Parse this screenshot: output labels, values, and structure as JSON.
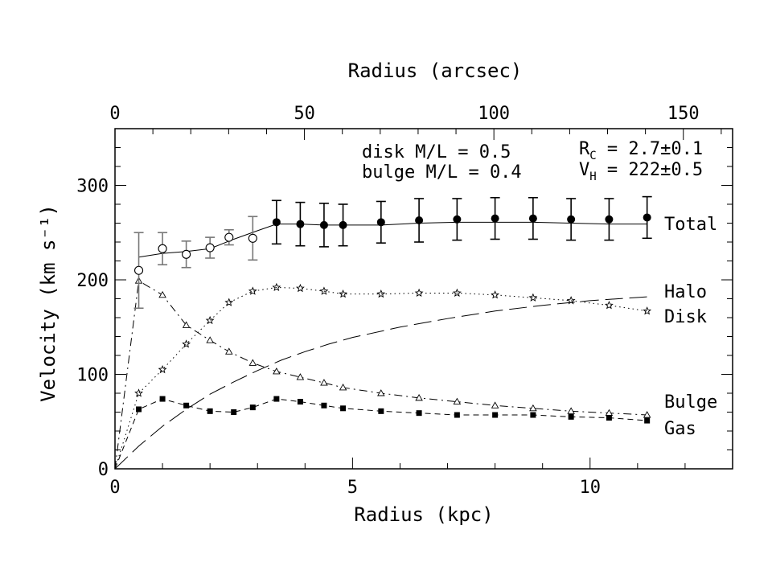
{
  "chart_data": {
    "type": "line",
    "xlabel": "Radius (kpc)",
    "ylabel": "Velocity (km s⁻¹)",
    "x2label": "Radius (arcsec)",
    "xlim": [
      0,
      13
    ],
    "ylim": [
      0,
      360
    ],
    "x2lim": [
      0,
      163
    ],
    "xticks": [
      0,
      5,
      10
    ],
    "yticks": [
      0,
      100,
      200,
      300
    ],
    "x2ticks": [
      0,
      50,
      100,
      150
    ],
    "annotations": {
      "disk_ml": "disk M/L = 0.5",
      "bulge_ml": "bulge M/L = 0.4",
      "rc_label": "R",
      "rc_sub": "C",
      "rc_value": " = 2.7±0.1",
      "vh_label": "V",
      "vh_sub": "H",
      "vh_value": " = 222±0.5"
    },
    "series": [
      {
        "name": "Total",
        "style": "solid",
        "x": [
          0.5,
          1.0,
          1.5,
          2.0,
          2.5,
          3.0,
          3.4,
          3.9,
          4.4,
          4.8,
          5.6,
          6.4,
          7.2,
          8.0,
          8.8,
          9.6,
          10.4,
          11.2
        ],
        "y": [
          224,
          228,
          230,
          233,
          243,
          252,
          259,
          259,
          258,
          258,
          258,
          260,
          261,
          261,
          261,
          260,
          259,
          259
        ]
      },
      {
        "name": "Halo",
        "style": "longdash",
        "x": [
          0,
          0.5,
          1.0,
          1.5,
          2.0,
          2.5,
          3.0,
          3.5,
          4.0,
          4.5,
          5.0,
          6.0,
          7.0,
          8.0,
          9.0,
          10.0,
          11.2
        ],
        "y": [
          0,
          24,
          45,
          63,
          79,
          92,
          104,
          115,
          124,
          132,
          139,
          150,
          159,
          167,
          173,
          178,
          182
        ]
      },
      {
        "name": "Disk",
        "style": "dotted",
        "marker": "star",
        "x": [
          0,
          0.5,
          1.0,
          1.5,
          2.0,
          2.4,
          2.9,
          3.4,
          3.9,
          4.4,
          4.8,
          5.6,
          6.4,
          7.2,
          8.0,
          8.8,
          9.6,
          10.4,
          11.2
        ],
        "y": [
          0,
          80,
          105,
          132,
          157,
          176,
          188,
          192,
          191,
          188,
          185,
          185,
          186,
          186,
          184,
          181,
          178,
          173,
          167
        ]
      },
      {
        "name": "Bulge",
        "style": "dashdot",
        "marker": "open-triangle",
        "x": [
          0,
          0.5,
          1.0,
          1.5,
          2.0,
          2.4,
          2.9,
          3.4,
          3.9,
          4.4,
          4.8,
          5.6,
          6.4,
          7.2,
          8.0,
          8.8,
          9.6,
          10.4,
          11.2
        ],
        "y": [
          0,
          199,
          184,
          152,
          136,
          124,
          112,
          103,
          97,
          91,
          86,
          80,
          75,
          71,
          67,
          64,
          61,
          59,
          57
        ]
      },
      {
        "name": "Gas",
        "style": "dashed",
        "marker": "filled-square",
        "x": [
          0,
          0.5,
          1.0,
          1.5,
          2.0,
          2.5,
          2.9,
          3.4,
          3.9,
          4.4,
          4.8,
          5.6,
          6.4,
          7.2,
          8.0,
          8.8,
          9.6,
          10.4,
          11.2
        ],
        "y": [
          0,
          63,
          74,
          67,
          61,
          60,
          65,
          74,
          71,
          67,
          64,
          61,
          59,
          57,
          57,
          57,
          55,
          54,
          51
        ]
      }
    ],
    "observations": [
      {
        "name": "open-circles",
        "marker": "open-circle",
        "x": [
          0.5,
          1.0,
          1.5,
          2.0,
          2.4,
          2.9
        ],
        "y": [
          210,
          233,
          227,
          234,
          245,
          244
        ],
        "err": [
          40,
          17,
          14,
          11,
          8,
          23
        ]
      },
      {
        "name": "filled-circles",
        "marker": "filled-circle",
        "x": [
          3.4,
          3.9,
          4.4,
          4.8,
          5.6,
          6.4,
          7.2,
          8.0,
          8.8,
          9.6,
          10.4,
          11.2
        ],
        "y": [
          261,
          259,
          258,
          258,
          261,
          263,
          264,
          265,
          265,
          264,
          264,
          266
        ],
        "err": [
          23,
          23,
          23,
          22,
          22,
          23,
          22,
          22,
          22,
          22,
          22,
          22
        ]
      }
    ]
  }
}
